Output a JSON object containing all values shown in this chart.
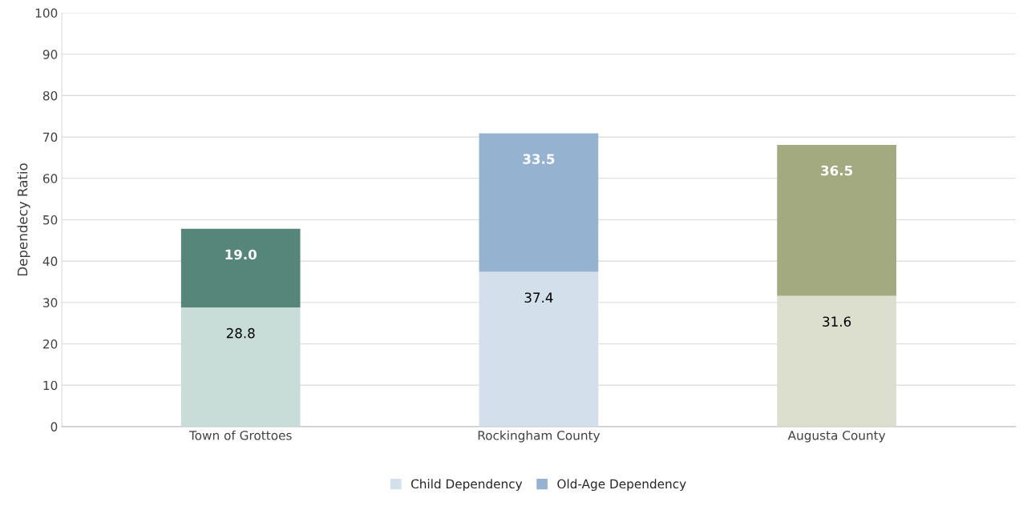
{
  "chart_data": {
    "type": "bar",
    "stacked": true,
    "ylabel": "Dependecy Ratio",
    "categories": [
      "Town of Grottoes",
      "Rockingham County",
      "Augusta County"
    ],
    "series": [
      {
        "name": "Child Dependency",
        "color": "#d3e0eb",
        "colors": [
          "#c8ddd8",
          "#d3e0eb",
          "#dcdfcd"
        ],
        "values": [
          28.8,
          37.4,
          31.6
        ],
        "value_labels": [
          "28.8",
          "37.4",
          "31.6"
        ]
      },
      {
        "name": "Old-Age Dependency",
        "color": "#95b3d0",
        "colors": [
          "#56857a",
          "#95b3d0",
          "#a3aa80"
        ],
        "values": [
          19.0,
          33.5,
          36.5
        ],
        "value_labels": [
          "19.0",
          "33.5",
          "36.5"
        ]
      }
    ],
    "ylim": [
      0,
      100
    ],
    "yticks": [
      0,
      10,
      20,
      30,
      40,
      50,
      60,
      70,
      80,
      90,
      100
    ],
    "grid": "y",
    "legend": "bottom"
  }
}
